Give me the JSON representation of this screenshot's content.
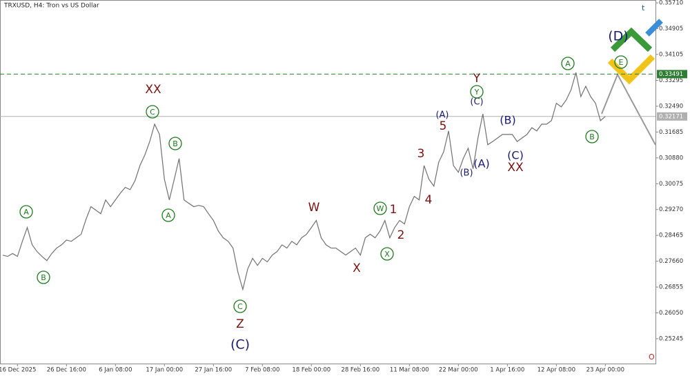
{
  "chart_data": {
    "type": "line",
    "title": "TRXUSD, H4:  Tron vs US Dollar",
    "categories": [
      null,
      null,
      null,
      "16 Dec 2025",
      null,
      null,
      null,
      null,
      null,
      null,
      null,
      null,
      null,
      "26 Dec 16:00",
      null,
      null,
      null,
      null,
      null,
      null,
      null,
      null,
      null,
      "6 Jan 08:00",
      null,
      null,
      null,
      null,
      null,
      null,
      null,
      null,
      null,
      "17 Jan 00:00",
      null,
      null,
      null,
      null,
      null,
      null,
      null,
      null,
      null,
      "27 Jan 16:00",
      null,
      null,
      null,
      null,
      null,
      null,
      null,
      null,
      null,
      "7 Feb 08:00",
      null,
      null,
      null,
      null,
      null,
      null,
      null,
      null,
      null,
      "18 Feb 00:00",
      null,
      null,
      null,
      null,
      null,
      null,
      null,
      null,
      null,
      "28 Feb 16:00",
      null,
      null,
      null,
      null,
      null,
      null,
      null,
      null,
      null,
      "11 Mar 08:00",
      null,
      null,
      null,
      null,
      null,
      null,
      null,
      null,
      null,
      "22 Mar 00:00",
      null,
      null,
      null,
      null,
      null,
      null,
      null,
      null,
      null,
      "1 Apr 16:00",
      null,
      null,
      null,
      null,
      null,
      null,
      null,
      null,
      null,
      "12 Apr 08:00",
      null,
      null,
      null,
      null,
      null,
      null,
      null,
      null,
      null,
      "23 Apr 00:00"
    ],
    "series": [
      {
        "name": "TRXUSD",
        "color": "#707070",
        "values": [
          0.2785,
          0.2781,
          0.279,
          0.2781,
          0.2828,
          0.2871,
          0.2817,
          0.2796,
          0.2781,
          0.2768,
          0.279,
          0.2807,
          0.2817,
          0.2832,
          0.2828,
          0.2839,
          0.285,
          0.2897,
          0.2936,
          0.2925,
          0.2914,
          0.2957,
          0.2936,
          0.2957,
          0.2978,
          0.2996,
          0.2989,
          0.3017,
          0.3064,
          0.3097,
          0.3139,
          0.3193,
          0.3161,
          0.3021,
          0.2957,
          0.3021,
          0.3086,
          0.2957,
          0.2946,
          0.2936,
          0.294,
          0.2936,
          0.2914,
          0.2893,
          0.286,
          0.2839,
          0.2828,
          0.2807,
          0.2732,
          0.2678,
          0.2742,
          0.2775,
          0.2753,
          0.2775,
          0.2764,
          0.2785,
          0.2796,
          0.2817,
          0.2807,
          0.2828,
          0.2817,
          0.2839,
          0.285,
          0.2871,
          0.2893,
          0.2839,
          0.2817,
          0.2807,
          0.2807,
          0.2796,
          0.2785,
          0.2796,
          0.2807,
          0.2785,
          0.2839,
          0.285,
          0.2839,
          0.286,
          0.2893,
          0.2839,
          0.2871,
          0.2893,
          0.2882,
          0.2936,
          0.2968,
          0.2957,
          0.3064,
          0.3021,
          0.3,
          0.3075,
          0.3107,
          0.3172,
          0.3064,
          0.3043,
          0.3086,
          0.3118,
          0.3054,
          0.315,
          0.3225,
          0.3129,
          0.3139,
          0.315,
          0.3161,
          0.3161,
          0.3161,
          0.3139,
          0.315,
          0.3161,
          0.3182,
          0.3172,
          0.3193,
          0.3193,
          0.3204,
          0.3258,
          0.3247,
          0.3268,
          0.33,
          0.3354,
          0.3279,
          0.3311,
          0.3279,
          0.3258,
          0.3204,
          0.3217
        ]
      }
    ],
    "ylim": [
      0.2447,
      0.358
    ],
    "yticks": [
      {
        "value": 0.3571,
        "label": "0.35710"
      },
      0.34905,
      0.34105,
      0.33295,
      {
        "value": 0.3249,
        "label": "0.32490"
      },
      0.31685,
      {
        "value": 0.3088,
        "label": "0.30880"
      },
      0.30075,
      {
        "value": 0.2927,
        "label": "0.29270"
      },
      0.28465,
      {
        "value": 0.2766,
        "label": "0.27660"
      },
      0.26855,
      {
        "value": 0.2605,
        "label": "0.26050"
      },
      0.25245
    ],
    "levels": [
      {
        "value": 0.33491,
        "color": "#2e7d32"
      },
      {
        "value": 0.32171,
        "color": "#b0b0b0"
      }
    ],
    "annotations": [
      "A",
      "B",
      "XX",
      "C",
      "B",
      "A",
      "C",
      "Z",
      "(C)",
      "W",
      "X",
      "W",
      "X",
      "1",
      "2",
      "3",
      "4",
      "5",
      "(A)",
      "(B)",
      "(C)",
      "Y",
      "Y",
      "(A)",
      "(B)",
      "(C)",
      "XX",
      "A",
      "B",
      "(D)",
      "E"
    ]
  }
}
